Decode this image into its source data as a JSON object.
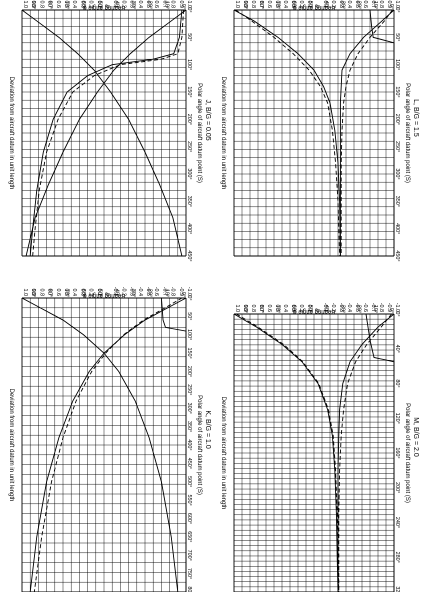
{
  "chart_data": [
    {
      "type": "line",
      "panel_label": "J,",
      "ratio_text": "B/G = 0.05",
      "xlabel": "Polar angle of aircraft datum point (S)",
      "ylabel": "Deviation from aircraft datum in unit length",
      "right_axis_label": "Bearing angle φ",
      "x_ticks": [
        "0°",
        "50°",
        "100°",
        "150°",
        "200°",
        "250°",
        "300°",
        "350°",
        "400°",
        "450°"
      ],
      "y_ticks": [
        "1.0",
        "0.9",
        "0.8",
        "0.7",
        "0.6",
        "0.5",
        "0.4",
        "0.3",
        "0.2",
        "0.1",
        "0",
        "-0.1",
        "-0.2",
        "-0.3",
        "-0.4",
        "-0.5",
        "-0.6",
        "-0.7",
        "-0.8",
        "-0.9",
        "-1.0"
      ],
      "right_ticks": [
        "90°",
        "80°",
        "70°",
        "60°",
        "50°",
        "40°",
        "30°",
        "20°",
        "10°",
        "0°"
      ],
      "xlim": [
        0,
        450
      ],
      "ylim": [
        -1.0,
        1.0
      ],
      "series": [
        {
          "style": "solid",
          "x": [
            0,
            20,
            50,
            80,
            110,
            150,
            200,
            260,
            320,
            380,
            450
          ],
          "y": [
            1.0,
            0.82,
            0.55,
            0.32,
            0.12,
            -0.08,
            -0.3,
            -0.5,
            -0.68,
            -0.84,
            -0.95
          ]
        },
        {
          "style": "solid",
          "x": [
            0,
            20,
            50,
            80,
            110,
            150,
            200,
            260,
            320,
            380,
            450
          ],
          "y": [
            -1.0,
            -0.82,
            -0.55,
            -0.32,
            -0.12,
            0.08,
            0.3,
            0.5,
            0.68,
            0.84,
            0.95
          ]
        },
        {
          "style": "solid",
          "x": [
            0,
            50,
            80,
            90,
            100,
            120,
            150,
            200,
            260,
            330,
            400,
            450
          ],
          "y": [
            -0.95,
            -0.92,
            -0.85,
            -0.6,
            -0.1,
            0.2,
            0.45,
            0.62,
            0.74,
            0.82,
            0.87,
            0.9
          ]
        },
        {
          "style": "dashed",
          "x": [
            0,
            50,
            80,
            90,
            100,
            120,
            150,
            200,
            260,
            330,
            400,
            450
          ],
          "y": [
            -0.97,
            -0.95,
            -0.9,
            -0.7,
            -0.2,
            0.12,
            0.38,
            0.56,
            0.7,
            0.79,
            0.84,
            0.87
          ]
        }
      ]
    },
    {
      "type": "line",
      "panel_label": "L,",
      "ratio_text": "B/G = 1.5",
      "xlabel": "Polar angle of aircraft datum point (S)",
      "ylabel": "Deviation from aircraft datum in unit length",
      "right_axis_label": "Bearing angle φ",
      "x_ticks": [
        "0°",
        "50°",
        "100°",
        "150°",
        "200°",
        "250°",
        "300°",
        "350°",
        "400°",
        "450°"
      ],
      "y_ticks": [
        "1.0",
        "0.9",
        "0.8",
        "0.7",
        "0.6",
        "0.5",
        "0.4",
        "0.3",
        "0.2",
        "0.1",
        "0",
        "-0.1",
        "-0.2",
        "-0.3",
        "-0.4",
        "-0.5",
        "-0.6",
        "-0.7",
        "-0.8",
        "-0.9",
        "-1.0"
      ],
      "right_ticks": [
        "90°",
        "80°",
        "70°",
        "60°",
        "50°",
        "40°",
        "30°",
        "20°",
        "10°",
        "0°"
      ],
      "xlim": [
        0,
        450
      ],
      "ylim": [
        -1.0,
        1.0
      ],
      "series": [
        {
          "style": "solid",
          "x": [
            0,
            20,
            50,
            80,
            110,
            140,
            170,
            220,
            280,
            350,
            450
          ],
          "y": [
            1.0,
            0.75,
            0.45,
            0.2,
            0.0,
            -0.12,
            -0.2,
            -0.26,
            -0.3,
            -0.32,
            -0.33
          ]
        },
        {
          "style": "solid",
          "x": [
            0,
            20,
            50,
            80,
            110,
            140,
            170,
            220,
            280,
            350,
            450
          ],
          "y": [
            -1.0,
            -0.85,
            -0.62,
            -0.45,
            -0.35,
            -0.34,
            -0.33,
            -0.33,
            -0.33,
            -0.33,
            -0.33
          ]
        },
        {
          "style": "dashed",
          "x": [
            0,
            20,
            50,
            80,
            110,
            140,
            170,
            220,
            280,
            350,
            450
          ],
          "y": [
            0.98,
            0.78,
            0.5,
            0.26,
            0.06,
            -0.08,
            -0.17,
            -0.23,
            -0.27,
            -0.3,
            -0.32
          ]
        },
        {
          "style": "dashed",
          "x": [
            0,
            20,
            50,
            80,
            110,
            140,
            170,
            220,
            280,
            350,
            450
          ],
          "y": [
            -0.98,
            -0.88,
            -0.7,
            -0.55,
            -0.45,
            -0.4,
            -0.37,
            -0.35,
            -0.34,
            -0.34,
            -0.34
          ]
        },
        {
          "style": "solid",
          "x": [
            0,
            30,
            50,
            60,
            70,
            450
          ],
          "y": [
            -0.7,
            -0.72,
            -0.74,
            -1.0,
            -1.0,
            -1.0
          ]
        }
      ]
    },
    {
      "type": "line",
      "panel_label": "K,",
      "ratio_text": "B/G = 1.0",
      "xlabel": "Polar angle of aircraft datum point (S)",
      "ylabel": "Deviation from aircraft datum in unit length",
      "right_axis_label": "Bearing angle φ",
      "x_ticks": [
        "0°",
        "50°",
        "100°",
        "150°",
        "200°",
        "250°",
        "300°",
        "350°",
        "400°",
        "450°",
        "500°",
        "550°",
        "600°",
        "650°",
        "700°",
        "750°",
        "800°"
      ],
      "y_ticks": [
        "1.0",
        "0.9",
        "0.8",
        "0.7",
        "0.6",
        "0.5",
        "0.4",
        "0.3",
        "0.2",
        "0.1",
        "0",
        "-0.1",
        "-0.2",
        "-0.3",
        "-0.4",
        "-0.5",
        "-0.6",
        "-0.7",
        "-0.8",
        "-0.9",
        "-1.0"
      ],
      "right_ticks": [
        "90°",
        "80°",
        "70°",
        "60°",
        "50°",
        "40°",
        "30°",
        "20°",
        "10°",
        "0°"
      ],
      "xlim": [
        0,
        800
      ],
      "ylim": [
        -1.0,
        1.0
      ],
      "series": [
        {
          "style": "solid",
          "x": [
            0,
            30,
            60,
            100,
            150,
            200,
            280,
            380,
            500,
            650,
            800
          ],
          "y": [
            1.0,
            0.75,
            0.5,
            0.25,
            0.0,
            -0.18,
            -0.38,
            -0.55,
            -0.7,
            -0.82,
            -0.9
          ]
        },
        {
          "style": "solid",
          "x": [
            0,
            30,
            60,
            100,
            150,
            200,
            280,
            380,
            500,
            650,
            800
          ],
          "y": [
            -1.0,
            -0.75,
            -0.5,
            -0.25,
            0.0,
            0.18,
            0.38,
            0.55,
            0.7,
            0.82,
            0.9
          ]
        },
        {
          "style": "dashed",
          "x": [
            0,
            30,
            60,
            100,
            150,
            200,
            280,
            380,
            500,
            650,
            800
          ],
          "y": [
            -0.95,
            -0.72,
            -0.48,
            -0.24,
            -0.02,
            0.15,
            0.34,
            0.5,
            0.64,
            0.76,
            0.85
          ]
        },
        {
          "style": "solid",
          "x": [
            0,
            60,
            80,
            90,
            100,
            800
          ],
          "y": [
            -0.7,
            -0.72,
            -0.75,
            -1.0,
            -1.0,
            -1.0
          ]
        }
      ]
    },
    {
      "type": "line",
      "panel_label": "M,",
      "ratio_text": "B/G = 2.0",
      "xlabel": "Polar angle of aircraft datum point (S)",
      "ylabel": "Deviation from aircraft datum in unit length",
      "right_axis_label": "Bearing angle φ",
      "x_ticks": [
        "0°",
        "40°",
        "80°",
        "120°",
        "160°",
        "200°",
        "240°",
        "280°",
        "320°"
      ],
      "y_ticks": [
        "1.0",
        "0.9",
        "0.8",
        "0.7",
        "0.6",
        "0.5",
        "0.4",
        "0.3",
        "0.2",
        "0.1",
        "0",
        "-0.1",
        "-0.2",
        "-0.3",
        "-0.4",
        "-0.5",
        "-0.6",
        "-0.7",
        "-0.8",
        "-0.9",
        "-1.0"
      ],
      "right_ticks": [
        "90°",
        "80°",
        "70°",
        "60°",
        "50°",
        "40°",
        "30°",
        "20°",
        "10°",
        "0°"
      ],
      "xlim": [
        0,
        320
      ],
      "ylim": [
        -1.0,
        1.0
      ],
      "series": [
        {
          "style": "solid",
          "x": [
            0,
            15,
            35,
            55,
            80,
            110,
            140,
            180,
            230,
            280,
            320
          ],
          "y": [
            1.0,
            0.72,
            0.4,
            0.15,
            -0.05,
            -0.17,
            -0.23,
            -0.26,
            -0.28,
            -0.29,
            -0.3
          ]
        },
        {
          "style": "solid",
          "x": [
            0,
            15,
            35,
            55,
            80,
            110,
            140,
            180,
            230,
            280,
            320
          ],
          "y": [
            -1.0,
            -0.8,
            -0.6,
            -0.45,
            -0.36,
            -0.32,
            -0.31,
            -0.3,
            -0.3,
            -0.3,
            -0.3
          ]
        },
        {
          "style": "dashed",
          "x": [
            0,
            15,
            35,
            55,
            80,
            110,
            140,
            180,
            230,
            280,
            320
          ],
          "y": [
            0.97,
            0.7,
            0.38,
            0.14,
            -0.06,
            -0.18,
            -0.24,
            -0.27,
            -0.29,
            -0.3,
            -0.31
          ]
        },
        {
          "style": "dashed",
          "x": [
            0,
            15,
            35,
            55,
            80,
            110,
            140,
            180,
            230,
            280,
            320
          ],
          "y": [
            -0.97,
            -0.84,
            -0.66,
            -0.52,
            -0.42,
            -0.37,
            -0.34,
            -0.32,
            -0.31,
            -0.31,
            -0.31
          ]
        },
        {
          "style": "solid",
          "x": [
            0,
            30,
            50,
            55,
            320
          ],
          "y": [
            -0.65,
            -0.7,
            -0.75,
            -1.0,
            -1.0
          ]
        }
      ]
    }
  ]
}
